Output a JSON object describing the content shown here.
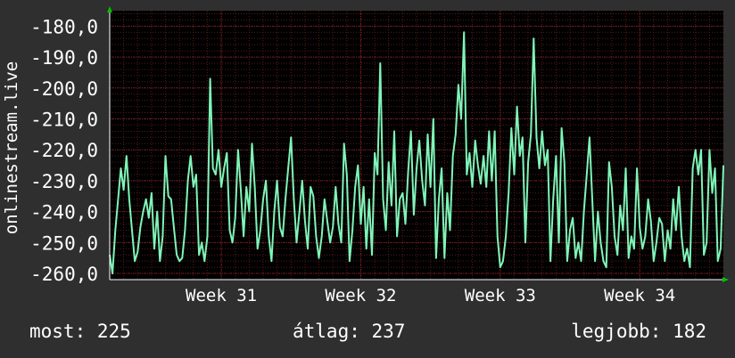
{
  "footer": {
    "now_label": "most:",
    "now_value": "225",
    "avg_label": "átlag:",
    "avg_value": "237",
    "best_label": "legjobb:",
    "best_value": "182"
  },
  "colors": {
    "background": "#2f2f2f",
    "plot_background": "#000000",
    "line": "#7ff5b8",
    "grid": "#5a1a1a",
    "axis_arrow": "#00c000",
    "text": "#ffffff"
  },
  "chart_data": {
    "type": "line",
    "title": "",
    "ylabel": "onlinestream.live",
    "xlabel": "",
    "x_ticks": [
      "Week 31",
      "Week 32",
      "Week 33",
      "Week 34"
    ],
    "y_ticks": [
      "-180,0",
      "-190,0",
      "-200,0",
      "-210,0",
      "-220,0",
      "-230,0",
      "-240,0",
      "-250,0",
      "-260,0"
    ],
    "ylim": [
      -262,
      -175
    ],
    "xlim": [
      30.2,
      34.6
    ],
    "grid": true,
    "series": [
      {
        "values": [
          [
            30.2,
            -254
          ],
          [
            30.22,
            -260
          ],
          [
            30.24,
            -246
          ],
          [
            30.26,
            -236
          ],
          [
            30.28,
            -226
          ],
          [
            30.3,
            -233
          ],
          [
            30.32,
            -222
          ],
          [
            30.34,
            -236
          ],
          [
            30.36,
            -246
          ],
          [
            30.38,
            -256
          ],
          [
            30.4,
            -253
          ],
          [
            30.42,
            -245
          ],
          [
            30.44,
            -240
          ],
          [
            30.46,
            -236
          ],
          [
            30.48,
            -242
          ],
          [
            30.5,
            -234
          ],
          [
            30.52,
            -252
          ],
          [
            30.54,
            -240
          ],
          [
            30.56,
            -256
          ],
          [
            30.58,
            -248
          ],
          [
            30.6,
            -222
          ],
          [
            30.62,
            -235
          ],
          [
            30.64,
            -236
          ],
          [
            30.66,
            -245
          ],
          [
            30.68,
            -254
          ],
          [
            30.7,
            -256
          ],
          [
            30.72,
            -255
          ],
          [
            30.74,
            -246
          ],
          [
            30.76,
            -230
          ],
          [
            30.78,
            -222
          ],
          [
            30.8,
            -232
          ],
          [
            30.82,
            -228
          ],
          [
            30.84,
            -254
          ],
          [
            30.86,
            -250
          ],
          [
            30.88,
            -256
          ],
          [
            30.9,
            -248
          ],
          [
            30.92,
            -197
          ],
          [
            30.94,
            -226
          ],
          [
            30.96,
            -228
          ],
          [
            30.98,
            -220
          ],
          [
            31.0,
            -232
          ],
          [
            31.02,
            -226
          ],
          [
            31.04,
            -221
          ],
          [
            31.06,
            -246
          ],
          [
            31.08,
            -250
          ],
          [
            31.1,
            -242
          ],
          [
            31.12,
            -220
          ],
          [
            31.14,
            -233
          ],
          [
            31.16,
            -248
          ],
          [
            31.18,
            -232
          ],
          [
            31.2,
            -240
          ],
          [
            31.22,
            -218
          ],
          [
            31.24,
            -232
          ],
          [
            31.26,
            -252
          ],
          [
            31.28,
            -246
          ],
          [
            31.3,
            -236
          ],
          [
            31.32,
            -230
          ],
          [
            31.34,
            -248
          ],
          [
            31.36,
            -256
          ],
          [
            31.38,
            -240
          ],
          [
            31.4,
            -230
          ],
          [
            31.42,
            -245
          ],
          [
            31.44,
            -248
          ],
          [
            31.46,
            -236
          ],
          [
            31.48,
            -226
          ],
          [
            31.5,
            -216
          ],
          [
            31.52,
            -236
          ],
          [
            31.54,
            -250
          ],
          [
            31.56,
            -240
          ],
          [
            31.58,
            -230
          ],
          [
            31.6,
            -243
          ],
          [
            31.62,
            -252
          ],
          [
            31.64,
            -232
          ],
          [
            31.66,
            -235
          ],
          [
            31.68,
            -248
          ],
          [
            31.7,
            -255
          ],
          [
            31.72,
            -248
          ],
          [
            31.74,
            -236
          ],
          [
            31.76,
            -243
          ],
          [
            31.78,
            -250
          ],
          [
            31.8,
            -245
          ],
          [
            31.82,
            -232
          ],
          [
            31.84,
            -244
          ],
          [
            31.86,
            -250
          ],
          [
            31.88,
            -218
          ],
          [
            31.9,
            -228
          ],
          [
            31.92,
            -256
          ],
          [
            31.94,
            -246
          ],
          [
            31.96,
            -232
          ],
          [
            31.98,
            -225
          ],
          [
            32.0,
            -244
          ],
          [
            32.02,
            -232
          ],
          [
            32.04,
            -252
          ],
          [
            32.06,
            -236
          ],
          [
            32.08,
            -254
          ],
          [
            32.1,
            -221
          ],
          [
            32.12,
            -228
          ],
          [
            32.14,
            -192
          ],
          [
            32.16,
            -236
          ],
          [
            32.18,
            -246
          ],
          [
            32.2,
            -224
          ],
          [
            32.22,
            -238
          ],
          [
            32.24,
            -214
          ],
          [
            32.26,
            -248
          ],
          [
            32.28,
            -236
          ],
          [
            32.3,
            -234
          ],
          [
            32.32,
            -244
          ],
          [
            32.34,
            -227
          ],
          [
            32.36,
            -214
          ],
          [
            32.38,
            -241
          ],
          [
            32.4,
            -226
          ],
          [
            32.42,
            -217
          ],
          [
            32.44,
            -230
          ],
          [
            32.46,
            -238
          ],
          [
            32.48,
            -215
          ],
          [
            32.5,
            -232
          ],
          [
            32.52,
            -210
          ],
          [
            32.54,
            -255
          ],
          [
            32.56,
            -236
          ],
          [
            32.58,
            -226
          ],
          [
            32.6,
            -255
          ],
          [
            32.62,
            -234
          ],
          [
            32.64,
            -246
          ],
          [
            32.66,
            -222
          ],
          [
            32.68,
            -215
          ],
          [
            32.7,
            -199
          ],
          [
            32.72,
            -210
          ],
          [
            32.74,
            -182
          ],
          [
            32.76,
            -228
          ],
          [
            32.78,
            -221
          ],
          [
            32.8,
            -232
          ],
          [
            32.82,
            -217
          ],
          [
            32.84,
            -225
          ],
          [
            32.86,
            -231
          ],
          [
            32.88,
            -222
          ],
          [
            32.9,
            -232
          ],
          [
            32.92,
            -214
          ],
          [
            32.94,
            -230
          ],
          [
            32.96,
            -214
          ],
          [
            32.98,
            -248
          ],
          [
            33.0,
            -258
          ],
          [
            33.02,
            -256
          ],
          [
            33.04,
            -248
          ],
          [
            33.06,
            -234
          ],
          [
            33.08,
            -213
          ],
          [
            33.1,
            -228
          ],
          [
            33.12,
            -206
          ],
          [
            33.14,
            -222
          ],
          [
            33.16,
            -216
          ],
          [
            33.18,
            -250
          ],
          [
            33.2,
            -224
          ],
          [
            33.22,
            -215
          ],
          [
            33.24,
            -184
          ],
          [
            33.26,
            -216
          ],
          [
            33.28,
            -226
          ],
          [
            33.3,
            -214
          ],
          [
            33.32,
            -225
          ],
          [
            33.34,
            -220
          ],
          [
            33.36,
            -256
          ],
          [
            33.38,
            -236
          ],
          [
            33.4,
            -222
          ],
          [
            33.42,
            -250
          ],
          [
            33.44,
            -213
          ],
          [
            33.46,
            -224
          ],
          [
            33.48,
            -256
          ],
          [
            33.5,
            -246
          ],
          [
            33.52,
            -242
          ],
          [
            33.54,
            -255
          ],
          [
            33.56,
            -250
          ],
          [
            33.58,
            -256
          ],
          [
            33.6,
            -240
          ],
          [
            33.62,
            -228
          ],
          [
            33.64,
            -216
          ],
          [
            33.66,
            -236
          ],
          [
            33.68,
            -256
          ],
          [
            33.7,
            -240
          ],
          [
            33.72,
            -250
          ],
          [
            33.74,
            -256
          ],
          [
            33.76,
            -258
          ],
          [
            33.78,
            -224
          ],
          [
            33.8,
            -232
          ],
          [
            33.82,
            -248
          ],
          [
            33.84,
            -254
          ],
          [
            33.86,
            -238
          ],
          [
            33.88,
            -246
          ],
          [
            33.9,
            -226
          ],
          [
            33.92,
            -255
          ],
          [
            33.94,
            -248
          ],
          [
            33.96,
            -252
          ],
          [
            33.98,
            -226
          ],
          [
            34.0,
            -245
          ],
          [
            34.02,
            -252
          ],
          [
            34.04,
            -248
          ],
          [
            34.06,
            -236
          ],
          [
            34.08,
            -243
          ],
          [
            34.1,
            -256
          ],
          [
            34.12,
            -250
          ],
          [
            34.14,
            -242
          ],
          [
            34.16,
            -244
          ],
          [
            34.18,
            -256
          ],
          [
            34.2,
            -246
          ],
          [
            34.22,
            -252
          ],
          [
            34.24,
            -236
          ],
          [
            34.26,
            -246
          ],
          [
            34.28,
            -232
          ],
          [
            34.3,
            -248
          ],
          [
            34.32,
            -256
          ],
          [
            34.34,
            -252
          ],
          [
            34.36,
            -258
          ],
          [
            34.38,
            -226
          ],
          [
            34.4,
            -220
          ],
          [
            34.42,
            -228
          ],
          [
            34.44,
            -220
          ],
          [
            34.46,
            -254
          ],
          [
            34.48,
            -250
          ],
          [
            34.5,
            -220
          ],
          [
            34.52,
            -234
          ],
          [
            34.54,
            -226
          ],
          [
            34.56,
            -256
          ],
          [
            34.58,
            -252
          ],
          [
            34.6,
            -225
          ]
        ]
      }
    ]
  }
}
